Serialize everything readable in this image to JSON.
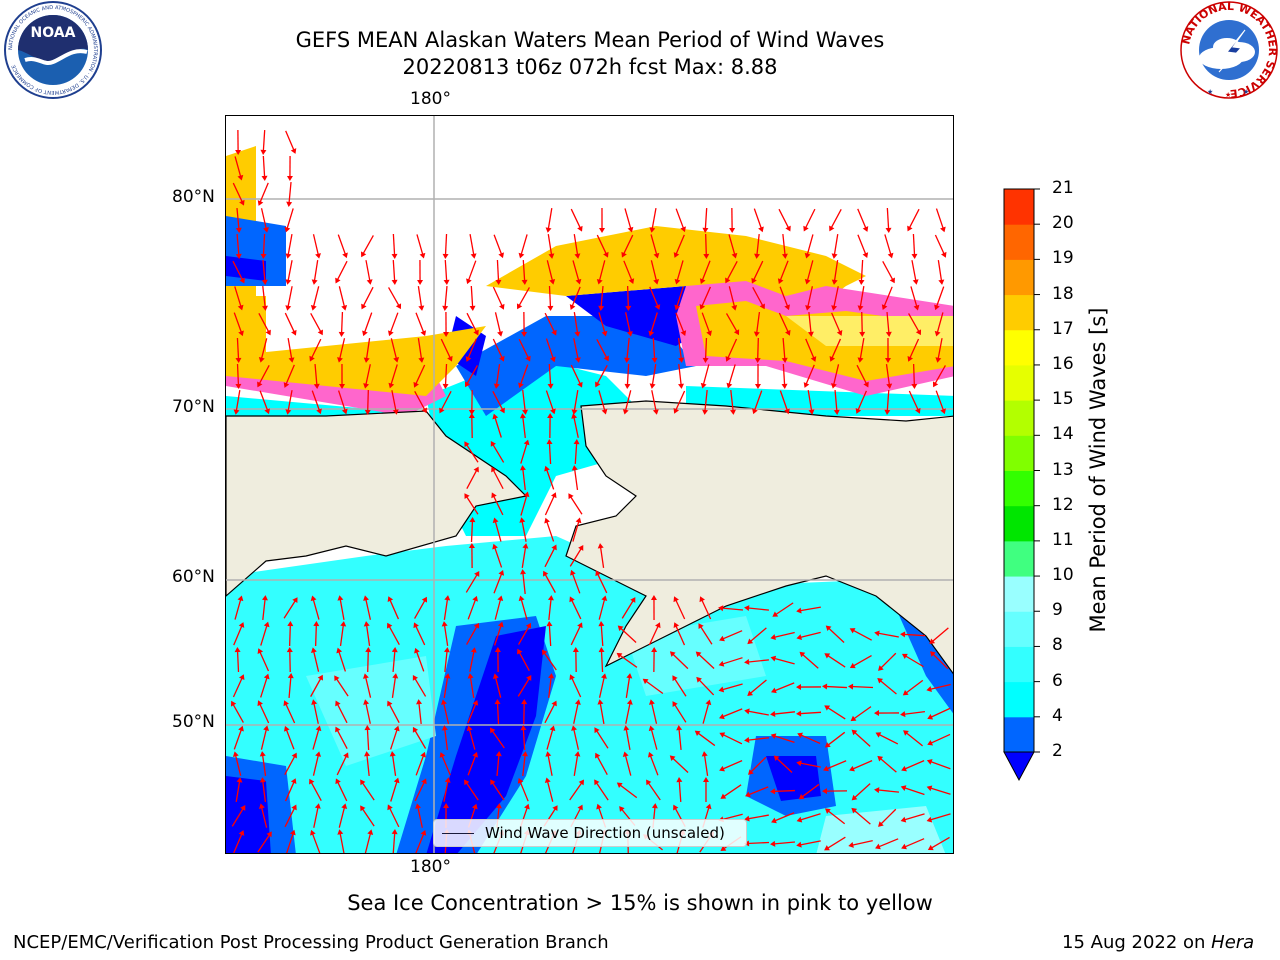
{
  "title": {
    "line1": "GEFS MEAN Alaskan Waters Mean Period of Wind Waves",
    "line2": "20220813 t06z 072h fcst   Max: 8.88"
  },
  "logos": {
    "noaa_text": "NOAA",
    "noaa_ring": "NATIONAL OCEANIC AND ATMOSPHERIC ADMINISTRATION · U.S. DEPARTMENT OF COMMERCE",
    "nws_ring": "NATIONAL WEATHER SERVICE"
  },
  "map": {
    "lon_label_top": "180°",
    "lon_label_bottom": "180°",
    "lat_labels": [
      "80°N",
      "70°N",
      "60°N",
      "50°N"
    ],
    "land_color": "#efedde",
    "legend_label": "Wind Wave Direction (unscaled)",
    "arrow_color": "#ff0000"
  },
  "colorbar": {
    "title": "Mean Period of Wind Waves [s]",
    "ticks": [
      "2",
      "4",
      "6",
      "8",
      "9",
      "10",
      "11",
      "12",
      "13",
      "14",
      "15",
      "16",
      "17",
      "18",
      "19",
      "20",
      "21"
    ],
    "colors": [
      "#0066ff",
      "#00ffff",
      "#33ffff",
      "#66ffff",
      "#99ffff",
      "#40ff80",
      "#00e600",
      "#33ff00",
      "#80ff00",
      "#b3ff00",
      "#e6ff00",
      "#ffff00",
      "#ffcc00",
      "#ff9900",
      "#ff6600",
      "#ff3300",
      "#ff0000"
    ],
    "under_color": "#0000ff"
  },
  "caption": "Sea Ice Concentration > 15% is shown in pink to yellow",
  "footer": {
    "left": "NCEP/EMC/Verification Post Processing Product Generation Branch",
    "right_date": "15 Aug 2022 on ",
    "right_host": "Hera"
  }
}
